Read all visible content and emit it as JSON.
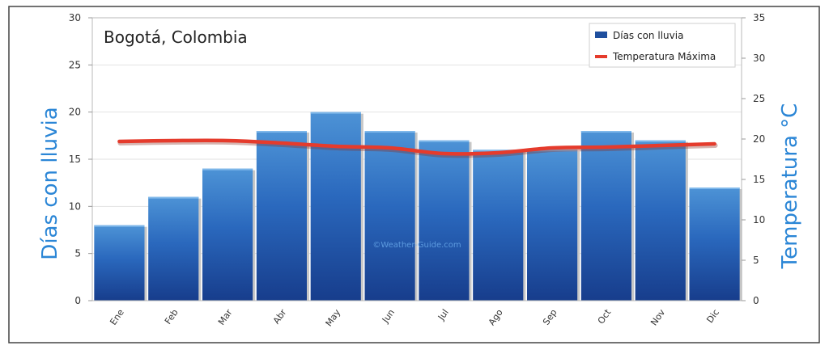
{
  "chart_data": {
    "type": "bar",
    "title": "Bogotá, Colombia",
    "categories": [
      "Ene",
      "Feb",
      "Mar",
      "Abr",
      "May",
      "Jun",
      "Jul",
      "Ago",
      "Sep",
      "Oct",
      "Nov",
      "Dic"
    ],
    "series": [
      {
        "name": "Días con lluvia",
        "type": "bar",
        "axis": "left",
        "values": [
          8,
          11,
          14,
          18,
          20,
          18,
          17,
          16,
          16,
          18,
          17,
          12
        ]
      },
      {
        "name": "Temperatura Máxima",
        "type": "line",
        "axis": "right",
        "values": [
          19.7,
          19.8,
          19.8,
          19.5,
          19.1,
          18.9,
          18.2,
          18.3,
          18.9,
          19.0,
          19.2,
          19.4
        ]
      }
    ],
    "ylabel": "Días con lluvia",
    "y2label": "Temperatura °C",
    "ylim": [
      0,
      30
    ],
    "y2lim": [
      0,
      35
    ],
    "yticks": [
      0,
      5,
      10,
      15,
      20,
      25,
      30
    ],
    "y2ticks": [
      0,
      5,
      10,
      15,
      20,
      25,
      30,
      35
    ],
    "legend": "top-right",
    "grid": true,
    "watermark": "©Weather-Guide.com",
    "colors": {
      "bar": "#1f4f9e",
      "line": "#e53b2c",
      "axis_label": "#2b86d6"
    }
  }
}
